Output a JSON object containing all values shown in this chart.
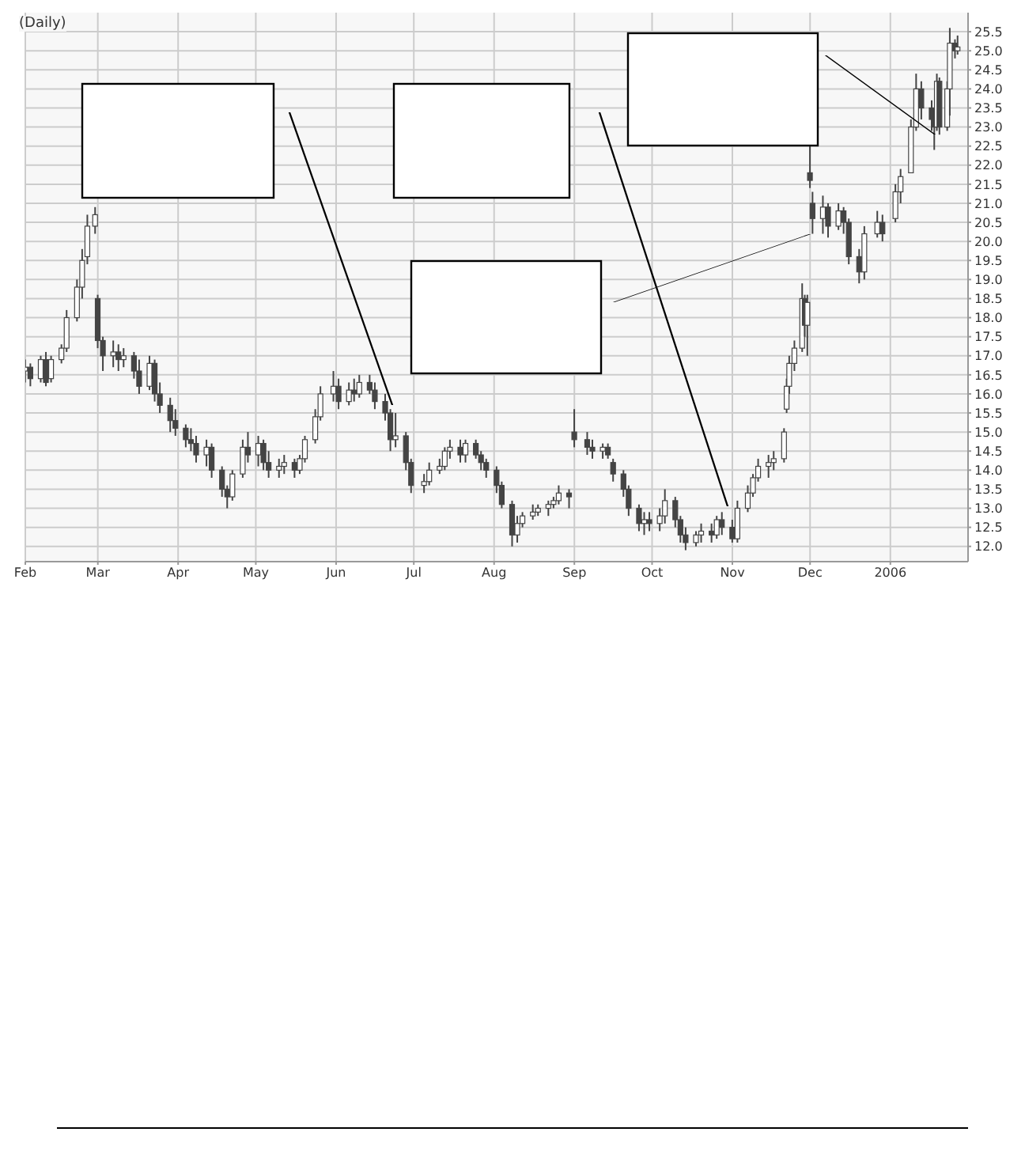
{
  "chart_data": {
    "type": "candlestick",
    "title": "(Daily)",
    "color": "#444444",
    "grid": true,
    "xlim": [
      "2005-02-01",
      "2006-01-31"
    ],
    "xticks": [
      {
        "value": "2005-02-01",
        "label": "Feb"
      },
      {
        "value": "2005-03-01",
        "label": "Mar"
      },
      {
        "value": "2005-04-01",
        "label": "Apr"
      },
      {
        "value": "2005-05-01",
        "label": "May"
      },
      {
        "value": "2005-06-01",
        "label": "Jun"
      },
      {
        "value": "2005-07-01",
        "label": "Jul"
      },
      {
        "value": "2005-08-01",
        "label": "Aug"
      },
      {
        "value": "2005-09-01",
        "label": "Sep"
      },
      {
        "value": "2005-10-01",
        "label": "Oct"
      },
      {
        "value": "2005-11-01",
        "label": "Nov"
      },
      {
        "value": "2005-12-01",
        "label": "Dec"
      },
      {
        "value": "2006-01-01",
        "label": "2006"
      }
    ],
    "ylim": [
      11.6,
      26.0
    ],
    "yticks": [
      {
        "value": 12,
        "label": "12.0"
      },
      12.5,
      {
        "value": 13,
        "label": "13.0"
      },
      13.5,
      {
        "value": 14,
        "label": "14.0"
      },
      14.5,
      {
        "value": 15,
        "label": "15.0"
      },
      15.5,
      {
        "value": 16,
        "label": "16.0"
      },
      16.5,
      {
        "value": 17,
        "label": "17.0"
      },
      17.5,
      {
        "value": 18,
        "label": "18.0"
      },
      18.5,
      {
        "value": 19,
        "label": "19.0"
      },
      19.5,
      {
        "value": 20,
        "label": "20.0"
      },
      20.5,
      {
        "value": 21,
        "label": "21.0"
      },
      21.5,
      {
        "value": 22,
        "label": "22.0"
      },
      22.5,
      {
        "value": 23,
        "label": "23.0"
      },
      23.5,
      {
        "value": 24,
        "label": "24.0"
      },
      24.5,
      {
        "value": 25,
        "label": "25.0"
      },
      25.5
    ],
    "x": [
      "2005-02-01",
      "2005-02-03",
      "2005-02-07",
      "2005-02-09",
      "2005-02-11",
      "2005-02-15",
      "2005-02-17",
      "2005-02-21",
      "2005-02-23",
      "2005-02-25",
      "2005-02-28",
      "2005-03-01",
      "2005-03-03",
      "2005-03-07",
      "2005-03-09",
      "2005-03-11",
      "2005-03-15",
      "2005-03-17",
      "2005-03-21",
      "2005-03-23",
      "2005-03-25",
      "2005-03-29",
      "2005-03-31",
      "2005-04-04",
      "2005-04-06",
      "2005-04-08",
      "2005-04-12",
      "2005-04-14",
      "2005-04-18",
      "2005-04-20",
      "2005-04-22",
      "2005-04-26",
      "2005-04-28",
      "2005-05-02",
      "2005-05-04",
      "2005-05-06",
      "2005-05-10",
      "2005-05-12",
      "2005-05-16",
      "2005-05-18",
      "2005-05-20",
      "2005-05-24",
      "2005-05-26",
      "2005-05-31",
      "2005-06-02",
      "2005-06-06",
      "2005-06-08",
      "2005-06-10",
      "2005-06-14",
      "2005-06-16",
      "2005-06-20",
      "2005-06-22",
      "2005-06-24",
      "2005-06-28",
      "2005-06-30",
      "2005-07-05",
      "2005-07-07",
      "2005-07-11",
      "2005-07-13",
      "2005-07-15",
      "2005-07-19",
      "2005-07-21",
      "2005-07-25",
      "2005-07-27",
      "2005-07-29",
      "2005-08-02",
      "2005-08-04",
      "2005-08-08",
      "2005-08-10",
      "2005-08-12",
      "2005-08-16",
      "2005-08-18",
      "2005-08-22",
      "2005-08-24",
      "2005-08-26",
      "2005-08-30",
      "2005-09-01",
      "2005-09-06",
      "2005-09-08",
      "2005-09-12",
      "2005-09-14",
      "2005-09-16",
      "2005-09-20",
      "2005-09-22",
      "2005-09-26",
      "2005-09-28",
      "2005-09-30",
      "2005-10-04",
      "2005-10-06",
      "2005-10-10",
      "2005-10-12",
      "2005-10-14",
      "2005-10-18",
      "2005-10-20",
      "2005-10-24",
      "2005-10-26",
      "2005-10-28",
      "2005-11-01",
      "2005-11-03",
      "2005-11-07",
      "2005-11-09",
      "2005-11-11",
      "2005-11-15",
      "2005-11-17",
      "2005-11-21",
      "2005-11-22",
      "2005-11-23",
      "2005-11-25",
      "2005-11-28",
      "2005-11-29",
      "2005-11-30",
      "2005-12-01",
      "2005-12-02",
      "2005-12-06",
      "2005-12-08",
      "2005-12-12",
      "2005-12-14",
      "2005-12-16",
      "2005-12-20",
      "2005-12-22",
      "2005-12-27",
      "2005-12-29",
      "2006-01-03",
      "2006-01-05",
      "2006-01-09",
      "2006-01-11",
      "2006-01-13",
      "2006-01-17",
      "2006-01-18",
      "2006-01-19",
      "2006-01-20",
      "2006-01-23",
      "2006-01-24",
      "2006-01-26",
      "2006-01-27"
    ],
    "ohlc": [
      [
        16.6,
        16.9,
        16.3,
        16.7
      ],
      [
        16.7,
        16.8,
        16.2,
        16.4
      ],
      [
        16.4,
        17.0,
        16.3,
        16.9
      ],
      [
        16.9,
        17.1,
        16.2,
        16.3
      ],
      [
        16.4,
        17.0,
        16.3,
        16.9
      ],
      [
        16.9,
        17.3,
        16.8,
        17.2
      ],
      [
        17.2,
        18.2,
        17.1,
        18.0
      ],
      [
        18.0,
        19.0,
        17.9,
        18.8
      ],
      [
        18.8,
        19.8,
        18.5,
        19.5
      ],
      [
        19.6,
        20.7,
        19.4,
        20.4
      ],
      [
        20.4,
        20.9,
        20.2,
        20.7
      ],
      [
        18.5,
        18.6,
        17.2,
        17.4
      ],
      [
        17.4,
        17.5,
        16.6,
        17.0
      ],
      [
        17.0,
        17.4,
        16.7,
        17.1
      ],
      [
        17.1,
        17.3,
        16.6,
        16.9
      ],
      [
        16.9,
        17.2,
        16.7,
        17.0
      ],
      [
        17.0,
        17.1,
        16.4,
        16.6
      ],
      [
        16.6,
        16.9,
        16.0,
        16.2
      ],
      [
        16.2,
        17.0,
        16.1,
        16.8
      ],
      [
        16.8,
        16.9,
        15.8,
        16.0
      ],
      [
        16.0,
        16.3,
        15.5,
        15.7
      ],
      [
        15.7,
        15.9,
        15.0,
        15.3
      ],
      [
        15.3,
        15.6,
        14.9,
        15.1
      ],
      [
        15.1,
        15.2,
        14.6,
        14.8
      ],
      [
        14.8,
        15.1,
        14.5,
        14.7
      ],
      [
        14.7,
        14.9,
        14.2,
        14.4
      ],
      [
        14.4,
        14.8,
        14.1,
        14.6
      ],
      [
        14.6,
        14.7,
        13.8,
        14.0
      ],
      [
        14.0,
        14.1,
        13.3,
        13.5
      ],
      [
        13.5,
        13.6,
        13.0,
        13.3
      ],
      [
        13.3,
        14.0,
        13.2,
        13.9
      ],
      [
        13.9,
        14.8,
        13.8,
        14.6
      ],
      [
        14.6,
        15.0,
        14.2,
        14.4
      ],
      [
        14.4,
        14.9,
        14.1,
        14.7
      ],
      [
        14.7,
        14.8,
        14.0,
        14.2
      ],
      [
        14.2,
        14.5,
        13.8,
        14.0
      ],
      [
        14.0,
        14.3,
        13.8,
        14.1
      ],
      [
        14.1,
        14.4,
        13.9,
        14.2
      ],
      [
        14.2,
        14.3,
        13.8,
        14.0
      ],
      [
        14.0,
        14.4,
        13.9,
        14.3
      ],
      [
        14.3,
        14.9,
        14.2,
        14.8
      ],
      [
        14.8,
        15.6,
        14.7,
        15.4
      ],
      [
        15.4,
        16.2,
        15.3,
        16.0
      ],
      [
        16.0,
        16.6,
        15.8,
        16.2
      ],
      [
        16.2,
        16.4,
        15.6,
        15.8
      ],
      [
        15.8,
        16.3,
        15.7,
        16.1
      ],
      [
        16.1,
        16.4,
        15.8,
        16.0
      ],
      [
        16.0,
        16.5,
        15.9,
        16.3
      ],
      [
        16.3,
        16.5,
        16.0,
        16.1
      ],
      [
        16.1,
        16.3,
        15.6,
        15.8
      ],
      [
        15.8,
        16.0,
        15.3,
        15.5
      ],
      [
        15.5,
        15.6,
        14.5,
        14.8
      ],
      [
        14.8,
        15.5,
        14.6,
        14.9
      ],
      [
        14.9,
        15.0,
        14.0,
        14.2
      ],
      [
        14.2,
        14.3,
        13.4,
        13.6
      ],
      [
        13.6,
        13.9,
        13.4,
        13.7
      ],
      [
        13.7,
        14.2,
        13.6,
        14.0
      ],
      [
        14.0,
        14.3,
        13.9,
        14.1
      ],
      [
        14.1,
        14.6,
        14.0,
        14.5
      ],
      [
        14.5,
        14.8,
        14.3,
        14.6
      ],
      [
        14.6,
        14.8,
        14.2,
        14.4
      ],
      [
        14.4,
        14.8,
        14.2,
        14.7
      ],
      [
        14.7,
        14.8,
        14.3,
        14.4
      ],
      [
        14.4,
        14.5,
        14.0,
        14.2
      ],
      [
        14.2,
        14.3,
        13.8,
        14.0
      ],
      [
        14.0,
        14.1,
        13.4,
        13.6
      ],
      [
        13.6,
        13.7,
        13.0,
        13.1
      ],
      [
        13.1,
        13.2,
        12.0,
        12.3
      ],
      [
        12.3,
        12.8,
        12.1,
        12.6
      ],
      [
        12.6,
        12.9,
        12.5,
        12.8
      ],
      [
        12.8,
        13.1,
        12.7,
        12.9
      ],
      [
        12.9,
        13.1,
        12.8,
        13.0
      ],
      [
        13.0,
        13.2,
        12.8,
        13.1
      ],
      [
        13.1,
        13.3,
        13.0,
        13.2
      ],
      [
        13.2,
        13.6,
        13.1,
        13.4
      ],
      [
        13.4,
        13.5,
        13.0,
        13.3
      ],
      [
        15.0,
        15.6,
        14.6,
        14.8
      ],
      [
        14.8,
        15.0,
        14.4,
        14.6
      ],
      [
        14.6,
        14.8,
        14.3,
        14.5
      ],
      [
        14.5,
        14.7,
        14.3,
        14.6
      ],
      [
        14.6,
        14.7,
        14.3,
        14.4
      ],
      [
        14.2,
        14.3,
        13.7,
        13.9
      ],
      [
        13.9,
        14.0,
        13.3,
        13.5
      ],
      [
        13.5,
        13.6,
        12.8,
        13.0
      ],
      [
        13.0,
        13.1,
        12.4,
        12.6
      ],
      [
        12.6,
        12.9,
        12.3,
        12.7
      ],
      [
        12.7,
        12.9,
        12.4,
        12.6
      ],
      [
        12.6,
        13.0,
        12.4,
        12.8
      ],
      [
        12.8,
        13.5,
        12.6,
        13.2
      ],
      [
        13.2,
        13.3,
        12.5,
        12.7
      ],
      [
        12.7,
        12.8,
        12.1,
        12.3
      ],
      [
        12.3,
        12.5,
        11.9,
        12.1
      ],
      [
        12.1,
        12.4,
        12.0,
        12.3
      ],
      [
        12.3,
        12.6,
        12.1,
        12.4
      ],
      [
        12.4,
        12.6,
        12.1,
        12.3
      ],
      [
        12.3,
        12.8,
        12.2,
        12.7
      ],
      [
        12.7,
        12.9,
        12.3,
        12.5
      ],
      [
        12.5,
        12.7,
        12.1,
        12.2
      ],
      [
        12.2,
        13.2,
        12.1,
        13.0
      ],
      [
        13.0,
        13.6,
        12.9,
        13.4
      ],
      [
        13.4,
        13.9,
        13.3,
        13.8
      ],
      [
        13.8,
        14.3,
        13.7,
        14.1
      ],
      [
        14.1,
        14.4,
        13.8,
        14.2
      ],
      [
        14.2,
        14.5,
        14.0,
        14.3
      ],
      [
        14.3,
        15.1,
        14.2,
        15.0
      ],
      [
        15.6,
        16.4,
        15.5,
        16.2
      ],
      [
        16.2,
        17.0,
        16.0,
        16.8
      ],
      [
        16.8,
        17.4,
        16.6,
        17.2
      ],
      [
        17.2,
        18.9,
        17.1,
        18.5
      ],
      [
        18.5,
        18.6,
        17.5,
        17.8
      ],
      [
        17.8,
        18.6,
        17.0,
        18.4
      ],
      [
        21.8,
        22.5,
        21.4,
        21.6
      ],
      [
        21.0,
        21.3,
        20.2,
        20.6
      ],
      [
        20.6,
        21.2,
        20.2,
        20.9
      ],
      [
        20.9,
        21.0,
        20.1,
        20.4
      ],
      [
        20.4,
        21.0,
        20.3,
        20.8
      ],
      [
        20.8,
        20.9,
        20.2,
        20.5
      ],
      [
        20.5,
        20.6,
        19.4,
        19.6
      ],
      [
        19.6,
        19.8,
        18.9,
        19.2
      ],
      [
        19.2,
        20.4,
        19.0,
        20.2
      ],
      [
        20.2,
        20.8,
        20.1,
        20.5
      ],
      [
        20.5,
        20.7,
        20.0,
        20.2
      ],
      [
        20.6,
        21.5,
        20.5,
        21.3
      ],
      [
        21.3,
        21.9,
        21.0,
        21.7
      ],
      [
        21.8,
        23.2,
        21.8,
        23.0
      ],
      [
        23.0,
        24.4,
        22.9,
        24.0
      ],
      [
        24.0,
        24.2,
        23.2,
        23.5
      ],
      [
        23.5,
        23.7,
        22.9,
        23.2
      ],
      [
        23.2,
        23.4,
        22.4,
        23.0
      ],
      [
        23.0,
        24.4,
        22.9,
        24.2
      ],
      [
        24.2,
        24.3,
        22.8,
        23.0
      ],
      [
        23.0,
        24.2,
        22.9,
        24.0
      ],
      [
        24.0,
        25.6,
        23.3,
        25.2
      ],
      [
        25.2,
        25.3,
        24.8,
        25.0
      ],
      [
        25.0,
        25.4,
        24.9,
        25.1
      ]
    ]
  }
}
